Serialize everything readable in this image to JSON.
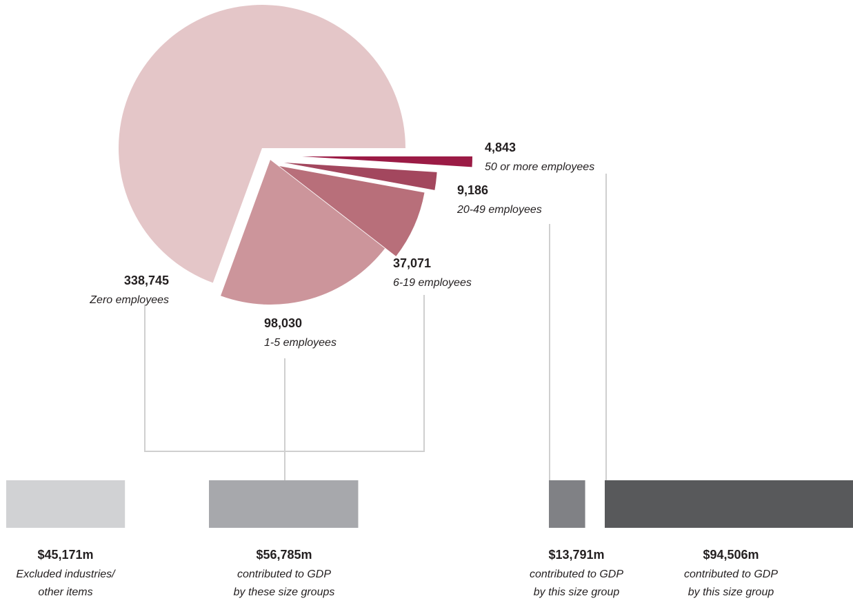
{
  "chart_data": [
    {
      "type": "pie",
      "categories": [
        "Zero employees",
        "1-5 employees",
        "6-19 employees",
        "20-49 employees",
        "50 or more employees"
      ],
      "values": [
        338745,
        98030,
        37071,
        9186,
        4843
      ],
      "value_labels": [
        "338,745",
        "98,030",
        "37,071",
        "9,186",
        "4,843"
      ],
      "colors": [
        "#e4c6c8",
        "#cc959b",
        "#b86f7a",
        "#a3475e",
        "#9b1b45"
      ]
    },
    {
      "type": "bar",
      "values": [
        45171,
        56785,
        13791,
        94506
      ],
      "value_labels": [
        "$45,171m",
        "$56,785m",
        "$13,791m",
        "$94,506m"
      ],
      "descriptions": [
        [
          "Excluded industries/",
          "other items"
        ],
        [
          "contributed to GDP",
          "by these size groups"
        ],
        [
          "contributed to GDP",
          "by this size group"
        ],
        [
          "contributed to GDP",
          "by this size group"
        ]
      ],
      "colors": [
        "#d1d2d4",
        "#a7a8ac",
        "#808185",
        "#58595b"
      ]
    }
  ]
}
